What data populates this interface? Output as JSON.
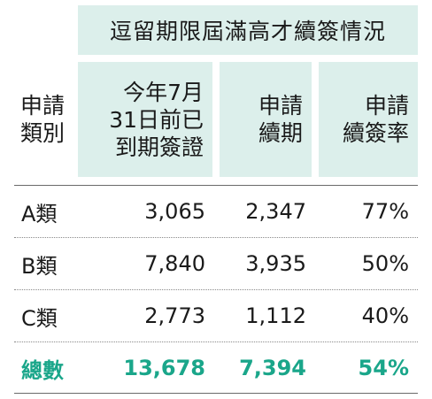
{
  "title": "逗留期限屆滿高才續簽情況",
  "columns": {
    "category": [
      "申請",
      "類別"
    ],
    "expired": [
      "今年7月",
      "31日前已",
      "到期簽證"
    ],
    "renewal_applications": [
      "申請",
      "續期"
    ],
    "renewal_rate": [
      "申請",
      "續簽率"
    ]
  },
  "rows": [
    {
      "category": "A類",
      "expired": "3,065",
      "renewal_applications": "2,347",
      "renewal_rate": "77%"
    },
    {
      "category": "B類",
      "expired": "7,840",
      "renewal_applications": "3,935",
      "renewal_rate": "50%"
    },
    {
      "category": "C類",
      "expired": "2,773",
      "renewal_applications": "1,112",
      "renewal_rate": "40%"
    }
  ],
  "total": {
    "category": "總數",
    "expired": "13,678",
    "renewal_applications": "7,394",
    "renewal_rate": "54%"
  },
  "colors": {
    "header_bg": "#dcefeb",
    "total_text": "#1aa68a",
    "rule": "#6a6a6a"
  }
}
